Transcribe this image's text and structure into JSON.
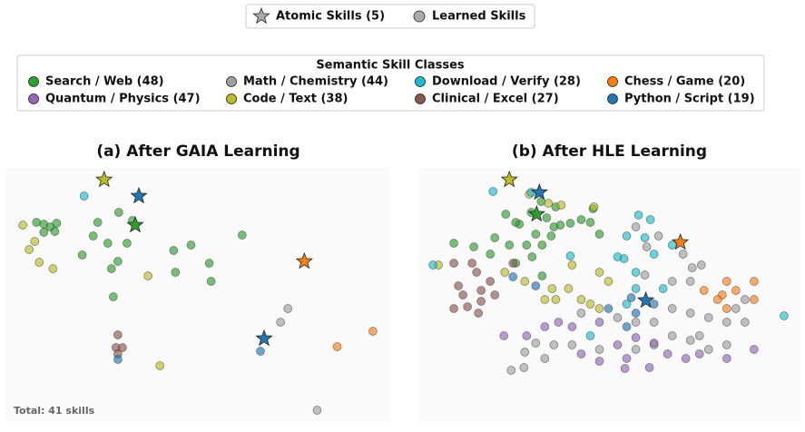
{
  "legend": {
    "markers": [
      "Atomic Skills (5)",
      "Learned Skills"
    ],
    "title": "Semantic Skill Classes",
    "classes": [
      {
        "name": "Search / Web (48)",
        "color": "#2ca02c"
      },
      {
        "name": "Quantum / Physics (47)",
        "color": "#9467bd"
      },
      {
        "name": "Math / Chemistry (44)",
        "color": "#a0a0a0"
      },
      {
        "name": "Code / Text (38)",
        "color": "#bcbd22"
      },
      {
        "name": "Download / Verify (28)",
        "color": "#17becf"
      },
      {
        "name": "Clinical / Excel (27)",
        "color": "#8c564b"
      },
      {
        "name": "Chess / Game (20)",
        "color": "#ff7f0e"
      },
      {
        "name": "Python / Script (19)",
        "color": "#1f77b4"
      }
    ]
  },
  "chart_data": [
    {
      "type": "scatter",
      "title": "(a) After GAIA Learning",
      "footnote": "Total: 41 skills",
      "xlim": [
        0,
        420
      ],
      "ylim": [
        0,
        280
      ],
      "series": [
        {
          "color": "#2ca02c",
          "x": [
            33,
            41,
            48,
            55,
            41,
            100,
            123,
            111,
            132,
            122,
            115,
            183,
            202,
            222,
            224,
            117,
            258,
            83,
            138,
            53,
            185,
            95
          ],
          "y": [
            220,
            218,
            215,
            219,
            209,
            220,
            231,
            197,
            197,
            177,
            169,
            189,
            195,
            175,
            155,
            138,
            206,
            184,
            222,
            210,
            165,
            205
          ]
        },
        {
          "color": "#bcbd22",
          "x": [
            18,
            31,
            36,
            51,
            155,
            168,
            25
          ],
          "y": [
            217,
            199,
            176,
            169,
            161,
            62,
            190
          ]
        },
        {
          "color": "#17becf",
          "x": [
            85
          ],
          "y": [
            249
          ]
        },
        {
          "color": "#a0a0a0",
          "x": [
            308,
            340,
            300
          ],
          "y": [
            125,
            13,
            110
          ]
        },
        {
          "color": "#8c564b",
          "x": [
            122,
            120,
            127,
            122
          ],
          "y": [
            96,
            82,
            82,
            75
          ]
        },
        {
          "color": "#1f77b4",
          "x": [
            122,
            278
          ],
          "y": [
            69,
            78
          ]
        },
        {
          "color": "#ff7f0e",
          "x": [
            362,
            401
          ],
          "y": [
            83,
            100
          ]
        }
      ],
      "stars": {
        "colors": [
          "#bcbd22",
          "#1f77b4",
          "#2ca02c",
          "#ff7f0e",
          "#1f77b4"
        ],
        "x": [
          107,
          145,
          141,
          326,
          282
        ],
        "y": [
          267,
          249,
          217,
          177,
          92
        ]
      }
    },
    {
      "type": "scatter",
      "title": "(b) After HLE Learning",
      "xlim": [
        0,
        420
      ],
      "ylim": [
        0,
        280
      ],
      "series": [
        {
          "color": "#2ca02c",
          "x": [
            96,
            111,
            124,
            141,
            151,
            167,
            179,
            129,
            146,
            156,
            84,
            100,
            119,
            136,
            149,
            39,
            61,
            79,
            107,
            125,
            136,
            189,
            199,
            135,
            107,
            192
          ],
          "y": [
            229,
            218,
            231,
            225,
            237,
            219,
            223,
            207,
            205,
            217,
            203,
            195,
            195,
            195,
            215,
            197,
            193,
            185,
            175,
            182,
            161,
            220,
            207,
            243,
            220,
            235
          ]
        },
        {
          "color": "#bcbd22",
          "x": [
            122,
            143,
            157,
            193,
            22,
            95,
            117,
            147,
            151,
            165,
            179,
            189,
            199,
            209,
            169,
            199,
            139
          ],
          "y": [
            251,
            241,
            239,
            237,
            173,
            165,
            155,
            147,
            135,
            147,
            135,
            130,
            125,
            155,
            173,
            165,
            135
          ]
        },
        {
          "color": "#17becf",
          "x": [
            82,
            124,
            242,
            255,
            229,
            249,
            226,
            239,
            259,
            279,
            16,
            167,
            189,
            239,
            269,
            229,
            402,
            219
          ],
          "y": [
            254,
            253,
            228,
            223,
            205,
            203,
            180,
            165,
            185,
            195,
            173,
            183,
            95,
            147,
            147,
            130,
            117,
            182
          ]
        },
        {
          "color": "#a0a0a0",
          "x": [
            239,
            264,
            251,
            291,
            301,
            311,
            249,
            279,
            299,
            219,
            239,
            259,
            279,
            299,
            319,
            339,
            359,
            279,
            299,
            319,
            339,
            259,
            239,
            199,
            169,
            149,
            129,
            117,
            102,
            116,
            139,
            179,
            349,
            309,
            359
          ],
          "y": [
            215,
            205,
            193,
            185,
            170,
            173,
            162,
            155,
            155,
            115,
            110,
            110,
            125,
            120,
            115,
            110,
            110,
            95,
            90,
            80,
            85,
            85,
            80,
            80,
            85,
            85,
            87,
            77,
            57,
            60,
            70,
            120,
            125,
            95,
            135
          ]
        },
        {
          "color": "#8c564b",
          "x": [
            39,
            59,
            64,
            44,
            49,
            69,
            39,
            54,
            69,
            84,
            79,
            66,
            104
          ],
          "y": [
            175,
            175,
            165,
            150,
            140,
            145,
            125,
            127,
            133,
            140,
            155,
            120,
            175
          ]
        },
        {
          "color": "#1f77b4",
          "x": [
            104,
            129,
            234,
            239,
            229,
            209,
            259
          ],
          "y": [
            160,
            150,
            137,
            120,
            105,
            125,
            130
          ]
        },
        {
          "color": "#ff7f0e",
          "x": [
            339,
            334,
            349,
            329,
            369,
            369,
            339,
            314
          ],
          "y": [
            155,
            140,
            145,
            135,
            155,
            135,
            125,
            145
          ]
        },
        {
          "color": "#9467bd",
          "x": [
            94,
            119,
            139,
            154,
            179,
            199,
            219,
            239,
            259,
            227,
            254,
            274,
            294,
            339,
            369,
            309,
            199,
            169,
            229
          ],
          "y": [
            95,
            95,
            105,
            110,
            75,
            67,
            85,
            93,
            87,
            59,
            60,
            75,
            70,
            70,
            80,
            75,
            110,
            105,
            70
          ]
        }
      ],
      "stars": {
        "colors": [
          "#bcbd22",
          "#1f77b4",
          "#2ca02c",
          "#ff7f0e",
          "#1f77b4"
        ],
        "x": [
          100,
          133,
          130,
          288,
          250
        ],
        "y": [
          267,
          253,
          229,
          198,
          134
        ]
      }
    }
  ]
}
